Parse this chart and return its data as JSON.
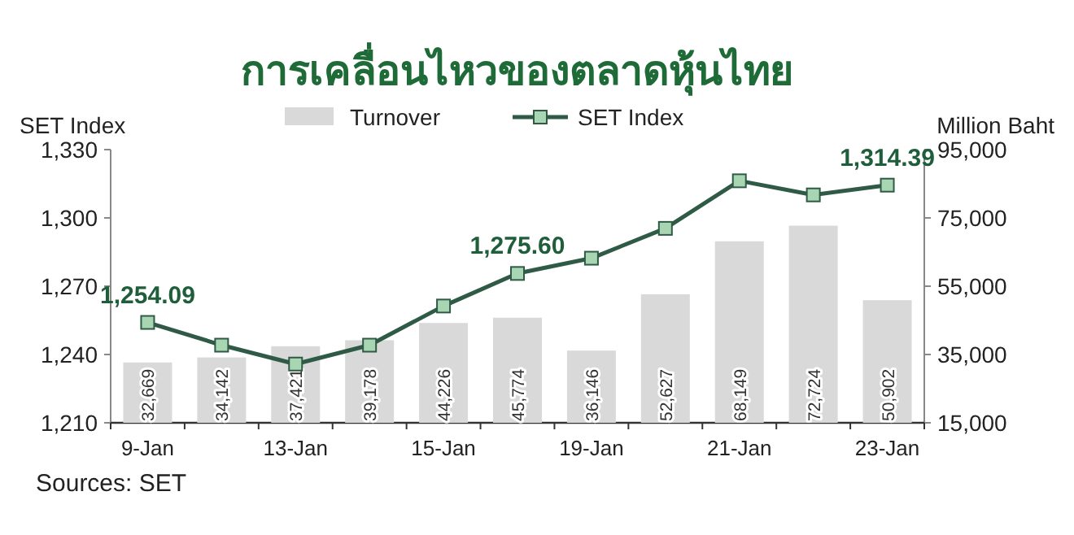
{
  "chart_data": {
    "type": "bar",
    "title": "การเคลื่อนไหวของตลาดหุ้นไทย",
    "ylabel": "SET Index",
    "y2label": "Million Baht",
    "categories": [
      "9-Jan",
      null,
      "13-Jan",
      null,
      "15-Jan",
      null,
      "19-Jan",
      null,
      "21-Jan",
      null,
      "23-Jan"
    ],
    "series": [
      {
        "name": "Turnover",
        "axis": "y2",
        "color": "#d9d9d9",
        "values": [
          32669,
          34142,
          37421,
          39178,
          44226,
          45774,
          36146,
          52627,
          68149,
          72724,
          50902
        ],
        "value_labels": [
          "32,669",
          "34,142",
          "37,421",
          "39,178",
          "44,226",
          "45,774",
          "36,146",
          "52,627",
          "68,149",
          "72,724",
          "50,902"
        ]
      },
      {
        "name": "SET Index",
        "type": "line",
        "color": "#2f5a45",
        "values": [
          1254.09,
          1244.1,
          1235.8,
          1244.1,
          1261.3,
          1275.6,
          1282.3,
          1295.4,
          1316.3,
          1310.1,
          1314.39
        ],
        "value_labels": [
          "1,254.09",
          null,
          null,
          null,
          null,
          "1,275.60",
          null,
          null,
          null,
          null,
          "1,314.39"
        ]
      }
    ],
    "ylim": [
      1210,
      1330
    ],
    "yticks": [
      {
        "value": 1210,
        "label": "1,210"
      },
      {
        "value": 1240,
        "label": "1,240"
      },
      {
        "value": 1270,
        "label": "1,270"
      },
      {
        "value": 1300,
        "label": "1,300"
      },
      {
        "value": 1330,
        "label": "1,330"
      }
    ],
    "y2lim": [
      15000,
      95000
    ],
    "y2ticks": [
      {
        "value": 15000,
        "label": "15,000"
      },
      {
        "value": 35000,
        "label": "35,000"
      },
      {
        "value": 55000,
        "label": "55,000"
      },
      {
        "value": 75000,
        "label": "75,000"
      },
      {
        "value": 95000,
        "label": "95,000"
      }
    ],
    "marker": "square",
    "legend": "top",
    "grid": false,
    "annotations": [
      "Sources: SET"
    ]
  }
}
